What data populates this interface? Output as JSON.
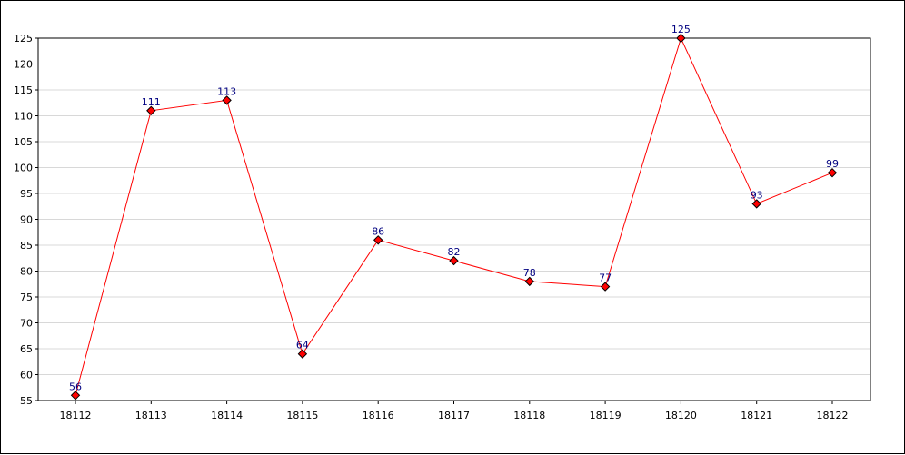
{
  "chart_data": {
    "type": "line",
    "categories": [
      "18112",
      "18113",
      "18114",
      "18115",
      "18116",
      "18117",
      "18118",
      "18119",
      "18120",
      "18121",
      "18122"
    ],
    "series": [
      {
        "values": [
          56,
          111,
          113,
          64,
          86,
          82,
          78,
          77,
          125,
          93,
          99
        ],
        "color": "#ff0000",
        "marker": "diamond",
        "marker_color": "#ff0000"
      }
    ],
    "title": "",
    "xlabel": "",
    "ylabel": "",
    "ylim": [
      55,
      125
    ],
    "yticks": [
      55,
      60,
      65,
      70,
      75,
      80,
      85,
      90,
      95,
      100,
      105,
      110,
      115,
      120,
      125
    ],
    "grid": true,
    "grid_axis": "y",
    "data_labels": true,
    "colors": {
      "line": "#ff0000",
      "data_label": "#000080",
      "grid": "#d8d8d8",
      "axis": "#000000"
    }
  }
}
